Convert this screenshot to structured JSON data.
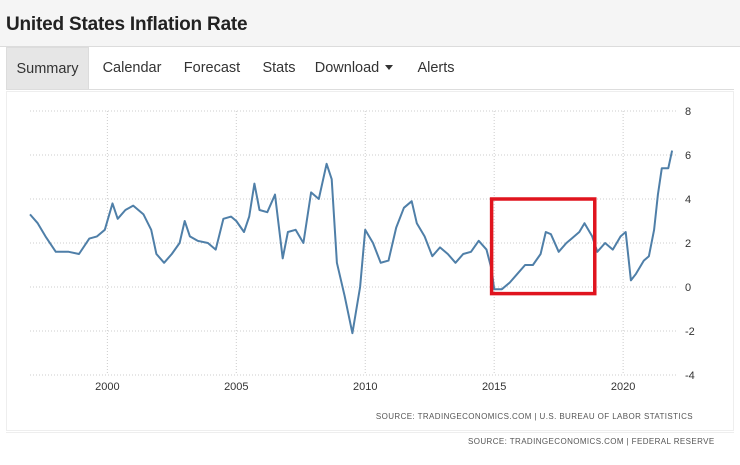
{
  "page": {
    "title": "United States Inflation Rate"
  },
  "tabs": [
    {
      "label": "Summary",
      "active": true
    },
    {
      "label": "Calendar"
    },
    {
      "label": "Forecast"
    },
    {
      "label": "Stats"
    },
    {
      "label": "Download",
      "dropdown": true
    },
    {
      "label": "Alerts"
    }
  ],
  "sources": {
    "chart": "SOURCE: TRADINGECONOMICS.COM  |  U.S. BUREAU OF LABOR STATISTICS",
    "page": "SOURCE: TRADINGECONOMICS.COM  |  FEDERAL RESERVE"
  },
  "colors": {
    "line": "#4f7fa8",
    "highlight": "#e0141e",
    "grid": "#cccccc"
  },
  "chart_data": {
    "type": "line",
    "title": "",
    "xlabel": "",
    "ylabel": "",
    "xlim": [
      1997.0,
      2022.05
    ],
    "ylim": [
      -4,
      8
    ],
    "x_ticks": [
      "2000",
      "2005",
      "2010",
      "2015",
      "2020"
    ],
    "y_ticks": [
      "8",
      "6",
      "4",
      "2",
      "0",
      "-2",
      "-4"
    ],
    "y_axis_position": "right",
    "grid": "dotted vertical and horizontal",
    "highlight_box": {
      "x_range": [
        2014.9,
        2018.9
      ],
      "y_range": [
        -0.3,
        4.0
      ]
    },
    "series": [
      {
        "points": [
          [
            1997.0,
            3.3
          ],
          [
            1997.3,
            2.9
          ],
          [
            1997.6,
            2.3
          ],
          [
            1998.0,
            1.6
          ],
          [
            1998.5,
            1.6
          ],
          [
            1998.9,
            1.5
          ],
          [
            1999.3,
            2.2
          ],
          [
            1999.6,
            2.3
          ],
          [
            1999.9,
            2.6
          ],
          [
            2000.2,
            3.8
          ],
          [
            2000.4,
            3.1
          ],
          [
            2000.7,
            3.5
          ],
          [
            2001.0,
            3.7
          ],
          [
            2001.4,
            3.3
          ],
          [
            2001.7,
            2.6
          ],
          [
            2001.9,
            1.5
          ],
          [
            2002.2,
            1.1
          ],
          [
            2002.5,
            1.5
          ],
          [
            2002.8,
            2.0
          ],
          [
            2003.0,
            3.0
          ],
          [
            2003.2,
            2.3
          ],
          [
            2003.5,
            2.1
          ],
          [
            2003.9,
            2.0
          ],
          [
            2004.2,
            1.7
          ],
          [
            2004.5,
            3.1
          ],
          [
            2004.8,
            3.2
          ],
          [
            2005.0,
            3.0
          ],
          [
            2005.3,
            2.5
          ],
          [
            2005.5,
            3.2
          ],
          [
            2005.7,
            4.7
          ],
          [
            2005.9,
            3.5
          ],
          [
            2006.2,
            3.4
          ],
          [
            2006.5,
            4.2
          ],
          [
            2006.8,
            1.3
          ],
          [
            2007.0,
            2.5
          ],
          [
            2007.3,
            2.6
          ],
          [
            2007.6,
            2.0
          ],
          [
            2007.9,
            4.3
          ],
          [
            2008.2,
            4.0
          ],
          [
            2008.5,
            5.6
          ],
          [
            2008.7,
            4.9
          ],
          [
            2008.9,
            1.1
          ],
          [
            2009.2,
            -0.4
          ],
          [
            2009.5,
            -2.1
          ],
          [
            2009.8,
            0.0
          ],
          [
            2010.0,
            2.6
          ],
          [
            2010.3,
            2.0
          ],
          [
            2010.6,
            1.1
          ],
          [
            2010.9,
            1.2
          ],
          [
            2011.2,
            2.7
          ],
          [
            2011.5,
            3.6
          ],
          [
            2011.8,
            3.9
          ],
          [
            2012.0,
            2.9
          ],
          [
            2012.3,
            2.3
          ],
          [
            2012.6,
            1.4
          ],
          [
            2012.9,
            1.8
          ],
          [
            2013.2,
            1.5
          ],
          [
            2013.5,
            1.1
          ],
          [
            2013.8,
            1.5
          ],
          [
            2014.1,
            1.6
          ],
          [
            2014.4,
            2.1
          ],
          [
            2014.7,
            1.7
          ],
          [
            2014.9,
            0.8
          ],
          [
            2015.0,
            -0.1
          ],
          [
            2015.3,
            -0.1
          ],
          [
            2015.6,
            0.2
          ],
          [
            2015.9,
            0.6
          ],
          [
            2016.2,
            1.0
          ],
          [
            2016.5,
            1.0
          ],
          [
            2016.8,
            1.5
          ],
          [
            2017.0,
            2.5
          ],
          [
            2017.2,
            2.4
          ],
          [
            2017.5,
            1.6
          ],
          [
            2017.8,
            2.0
          ],
          [
            2018.0,
            2.2
          ],
          [
            2018.3,
            2.5
          ],
          [
            2018.5,
            2.9
          ],
          [
            2018.8,
            2.3
          ],
          [
            2019.0,
            1.6
          ],
          [
            2019.3,
            2.0
          ],
          [
            2019.6,
            1.7
          ],
          [
            2019.9,
            2.3
          ],
          [
            2020.1,
            2.5
          ],
          [
            2020.3,
            0.3
          ],
          [
            2020.5,
            0.6
          ],
          [
            2020.8,
            1.2
          ],
          [
            2021.0,
            1.4
          ],
          [
            2021.2,
            2.6
          ],
          [
            2021.35,
            4.2
          ],
          [
            2021.5,
            5.4
          ],
          [
            2021.75,
            5.4
          ],
          [
            2021.9,
            6.2
          ]
        ]
      }
    ]
  }
}
